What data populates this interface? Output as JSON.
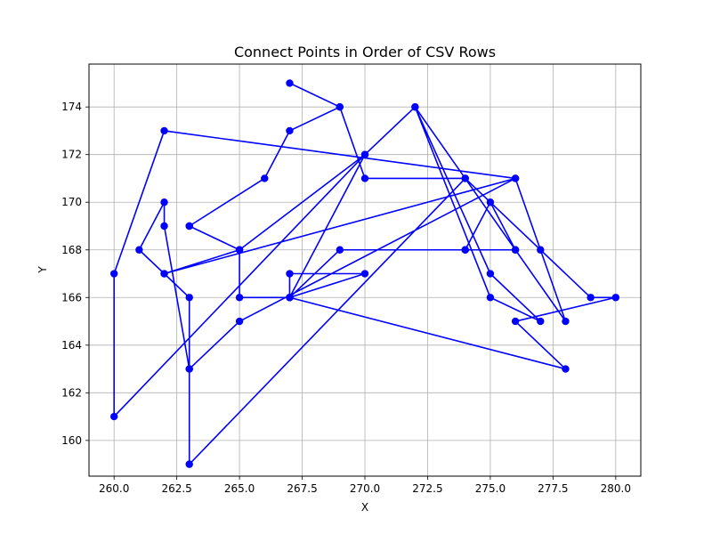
{
  "chart_data": {
    "type": "line",
    "title": "Connect Points in Order of CSV Rows",
    "xlabel": "X",
    "ylabel": "Y",
    "xlim": [
      259,
      281
    ],
    "ylim": [
      158.5,
      175.8
    ],
    "grid": true,
    "xticks": [
      "260.0",
      "262.5",
      "265.0",
      "267.5",
      "270.0",
      "272.5",
      "275.0",
      "277.5",
      "280.0"
    ],
    "yticks": [
      "160",
      "162",
      "164",
      "166",
      "168",
      "170",
      "172",
      "174"
    ],
    "series": [
      {
        "color": "#0000ff",
        "marker": "circle",
        "points": [
          [
            267,
            175
          ],
          [
            269,
            174
          ],
          [
            270,
            171
          ],
          [
            274,
            171
          ],
          [
            276,
            168
          ],
          [
            275,
            170
          ],
          [
            274,
            168
          ],
          [
            276,
            168
          ],
          [
            274,
            168
          ],
          [
            269,
            168
          ],
          [
            267,
            166
          ],
          [
            270,
            167
          ],
          [
            267,
            167
          ],
          [
            267,
            166
          ],
          [
            278,
            163
          ],
          [
            276,
            165
          ],
          [
            280,
            166
          ],
          [
            279,
            166
          ],
          [
            274,
            171
          ],
          [
            263,
            159
          ],
          [
            263,
            163
          ],
          [
            262,
            169
          ],
          [
            262,
            170
          ],
          [
            261,
            168
          ],
          [
            262,
            167
          ],
          [
            263,
            166
          ],
          [
            263,
            163
          ],
          [
            265,
            165
          ],
          [
            276,
            171
          ],
          [
            277,
            168
          ],
          [
            278,
            165
          ],
          [
            272,
            174
          ],
          [
            275,
            167
          ],
          [
            277,
            165
          ],
          [
            275,
            166
          ],
          [
            272,
            174
          ],
          [
            270,
            172
          ],
          [
            265,
            168
          ],
          [
            265,
            166
          ],
          [
            267,
            166
          ],
          [
            270,
            172
          ],
          [
            260,
            161
          ],
          [
            260,
            167
          ],
          [
            262,
            173
          ],
          [
            276,
            171
          ],
          [
            262,
            167
          ],
          [
            265,
            168
          ],
          [
            263,
            169
          ],
          [
            263,
            169
          ],
          [
            266,
            171
          ],
          [
            267,
            173
          ],
          [
            269,
            174
          ]
        ]
      }
    ]
  }
}
